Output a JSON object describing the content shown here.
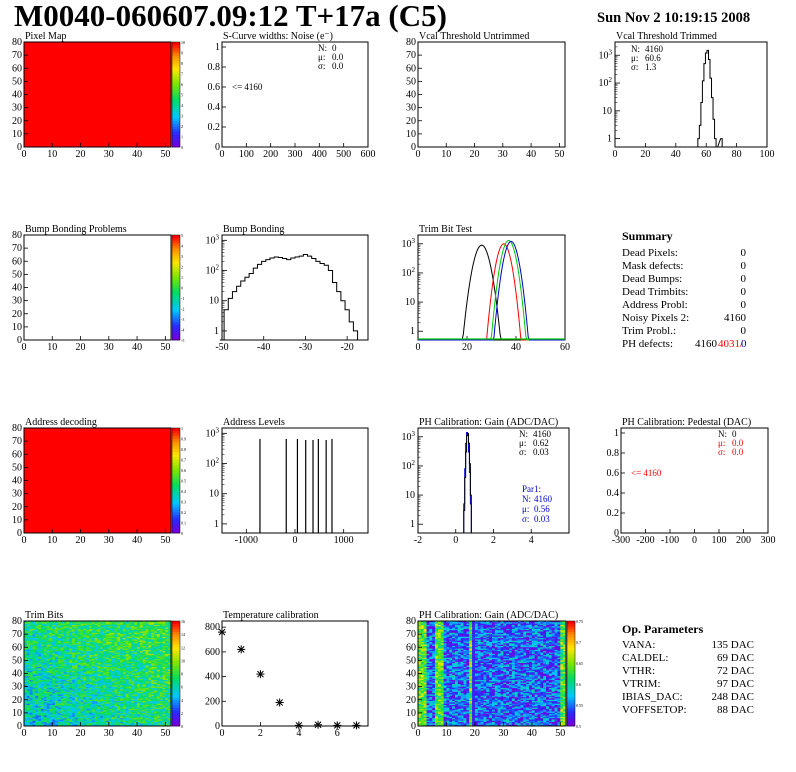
{
  "header": {
    "title": "M0040-060607.09:12 T+17a (C5)",
    "date": "Sun Nov  2 10:19:15 2008"
  },
  "colors": {
    "red": "#ff0000",
    "green": "#00cc00",
    "blue": "#0000cc",
    "frame": "#000000"
  },
  "summary": {
    "title": "Summary",
    "rows": [
      {
        "label": "Dead Pixels:",
        "value": "0"
      },
      {
        "label": "Mask defects:",
        "value": "0"
      },
      {
        "label": "Dead Bumps:",
        "value": "0"
      },
      {
        "label": "Dead Trimbits:",
        "value": "0"
      },
      {
        "label": "Address Probl:",
        "value": "0"
      },
      {
        "label": "Noisy Pixels 2:",
        "value": "4160"
      },
      {
        "label": "Trim Probl.:",
        "value": "0"
      }
    ],
    "ph": {
      "label": "PH defects:",
      "v1": "4160",
      "v2": "4031/",
      "v3": "0"
    }
  },
  "params": {
    "title": "Op. Parameters",
    "rows": [
      {
        "label": "VANA:",
        "value": "135 DAC"
      },
      {
        "label": "CALDEL:",
        "value": "69 DAC"
      },
      {
        "label": "VTHR:",
        "value": "72 DAC"
      },
      {
        "label": "VTRIM:",
        "value": "97 DAC"
      },
      {
        "label": "IBIAS_DAC:",
        "value": "248 DAC"
      },
      {
        "label": "VOFFSETOP:",
        "value": "88 DAC"
      }
    ]
  },
  "chart_data": [
    {
      "id": "pixel-map",
      "type": "heatmap",
      "title": "Pixel Map",
      "fill": "uniform-red",
      "xlim": [
        0,
        52
      ],
      "ylim": [
        0,
        80
      ],
      "xticks": [
        "0",
        "10",
        "20",
        "30",
        "40",
        "50"
      ],
      "yticks": [
        "0",
        "10",
        "20",
        "30",
        "40",
        "50",
        "60",
        "70",
        "80"
      ],
      "zticks": [
        "0",
        "1",
        "2",
        "3",
        "4",
        "5",
        "6",
        "7",
        "8",
        "9",
        "10"
      ]
    },
    {
      "id": "scurve",
      "type": "bar",
      "title": "S-Curve widths: Noise (e⁻)",
      "xlim": [
        0,
        600
      ],
      "ylim": [
        0,
        1.05
      ],
      "xticks": [
        "0",
        "100",
        "200",
        "300",
        "400",
        "500",
        "600"
      ],
      "yticks": [
        "0",
        "0.2",
        "0.4",
        "0.6",
        "0.8",
        "1"
      ],
      "stats": {
        "n": "0",
        "mu": "0.0",
        "sigma": "0.0"
      },
      "overflow": "<= 4160"
    },
    {
      "id": "vcal-untrimmed",
      "type": "heatmap",
      "title": "Vcal Threshold Untrimmed",
      "fill": "empty",
      "xlim": [
        0,
        52
      ],
      "ylim": [
        0,
        80
      ],
      "xticks": [
        "0",
        "10",
        "20",
        "30",
        "40",
        "50"
      ],
      "yticks": [
        "0",
        "10",
        "20",
        "30",
        "40",
        "50",
        "60",
        "70",
        "80"
      ]
    },
    {
      "id": "vcal-trimmed",
      "type": "bar",
      "title": "Vcal Threshold Trimmed",
      "log": true,
      "xlim": [
        0,
        100
      ],
      "ylim": [
        0.5,
        3000
      ],
      "xticks": [
        "0",
        "20",
        "40",
        "60",
        "80",
        "100"
      ],
      "stats": {
        "n": "4160",
        "mu": "60.6",
        "sigma": "1.3"
      },
      "x": [
        55,
        56,
        57,
        58,
        59,
        60,
        61,
        62,
        63,
        64,
        65,
        66,
        67,
        70,
        71
      ],
      "values": [
        1,
        3,
        20,
        120,
        500,
        1200,
        1500,
        700,
        150,
        30,
        5,
        1,
        0,
        1,
        0
      ]
    },
    {
      "id": "bump-problems",
      "type": "heatmap",
      "title": "Bump Bonding Problems",
      "fill": "empty",
      "xlim": [
        0,
        52
      ],
      "ylim": [
        0,
        80
      ],
      "xticks": [
        "0",
        "10",
        "20",
        "30",
        "40",
        "50"
      ],
      "yticks": [
        "0",
        "10",
        "20",
        "30",
        "40",
        "50",
        "60",
        "70",
        "80"
      ],
      "zticks": [
        "-5",
        "-4",
        "-3",
        "-2",
        "-1",
        "0",
        "1",
        "2",
        "3",
        "4",
        "5"
      ]
    },
    {
      "id": "bump-bonding",
      "type": "bar",
      "title": "Bump Bonding",
      "log": true,
      "xlim": [
        -50,
        -15
      ],
      "ylim": [
        0.5,
        1500
      ],
      "xticks": [
        "-50",
        "-40",
        "-30",
        "-20"
      ],
      "x": [
        -50,
        -49,
        -48,
        -47,
        -46,
        -45,
        -44,
        -43,
        -42,
        -41,
        -40,
        -39,
        -38,
        -37,
        -36,
        -35,
        -34,
        -33,
        -32,
        -31,
        -30,
        -29,
        -28,
        -27,
        -26,
        -25,
        -24,
        -23,
        -22,
        -21,
        -20,
        -19,
        -18,
        -17
      ],
      "values": [
        0,
        5,
        12,
        20,
        30,
        45,
        60,
        80,
        120,
        160,
        200,
        230,
        260,
        280,
        270,
        250,
        230,
        260,
        280,
        300,
        340,
        300,
        250,
        200,
        170,
        150,
        100,
        40,
        20,
        10,
        5,
        2,
        1,
        0
      ]
    },
    {
      "id": "trim-bit-test",
      "type": "line",
      "title": "Trim Bit Test",
      "log": true,
      "xlim": [
        0,
        60
      ],
      "ylim": [
        0.5,
        2000
      ],
      "xticks": [
        "0",
        "20",
        "40",
        "60"
      ],
      "series": [
        {
          "color": "#000000",
          "peak": 26,
          "width": 2.0,
          "height": 900
        },
        {
          "color": "#ff0000",
          "peak": 35,
          "width": 1.8,
          "height": 1000
        },
        {
          "color": "#00cc00",
          "peak": 37,
          "width": 1.8,
          "height": 1300
        },
        {
          "color": "#0000cc",
          "peak": 38,
          "width": 1.8,
          "height": 1200
        }
      ]
    },
    {
      "id": "address-decoding",
      "type": "heatmap",
      "title": "Address decoding",
      "fill": "uniform-red",
      "xlim": [
        0,
        52
      ],
      "ylim": [
        0,
        80
      ],
      "xticks": [
        "0",
        "10",
        "20",
        "30",
        "40",
        "50"
      ],
      "yticks": [
        "0",
        "10",
        "20",
        "30",
        "40",
        "50",
        "60",
        "70",
        "80"
      ],
      "zticks": [
        "0",
        "0.1",
        "0.2",
        "0.3",
        "0.4",
        "0.5",
        "0.6",
        "0.7",
        "0.8",
        "0.9",
        "1"
      ]
    },
    {
      "id": "address-levels",
      "type": "bar",
      "title": "Address Levels",
      "log": true,
      "xlim": [
        -1500,
        1500
      ],
      "ylim": [
        0.5,
        1500
      ],
      "xticks": [
        "-1000",
        "0",
        "1000"
      ],
      "x": [
        -720,
        -180,
        50,
        220,
        370,
        480,
        640,
        760
      ],
      "values": [
        650,
        650,
        650,
        600,
        600,
        650,
        600,
        650
      ]
    },
    {
      "id": "ph-gain",
      "type": "bar",
      "title": "PH Calibration: Gain (ADC/DAC)",
      "log": true,
      "xlim": [
        -2,
        6
      ],
      "ylim": [
        0.5,
        2000
      ],
      "xticks": [
        "-2",
        "0",
        "2",
        "4"
      ],
      "stats": {
        "n": "4160",
        "mu": "0.62",
        "sigma": "0.03"
      },
      "par1": {
        "label": "Par1:",
        "n": "4160",
        "mu": "0.56",
        "sigma": "0.03"
      },
      "x": [
        0.45,
        0.5,
        0.55,
        0.6,
        0.65,
        0.7,
        0.75,
        0.8
      ],
      "values": [
        3,
        40,
        300,
        1100,
        1300,
        600,
        120,
        10
      ],
      "values2": [
        5,
        80,
        600,
        1400,
        1200,
        300,
        60,
        5
      ]
    },
    {
      "id": "ph-pedestal",
      "type": "bar",
      "title": "PH Calibration: Pedestal (DAC)",
      "xlim": [
        -300,
        300
      ],
      "ylim": [
        0,
        1.05
      ],
      "xticks": [
        "-300",
        "-200",
        "-100",
        "0",
        "100",
        "200",
        "300"
      ],
      "yticks": [
        "0",
        "0.2",
        "0.4",
        "0.6",
        "0.8",
        "1"
      ],
      "stats": {
        "n": "0",
        "mu": "0.0",
        "sigma": "0.0"
      },
      "overflow": "<= 4160"
    },
    {
      "id": "trim-bits",
      "type": "heatmap",
      "title": "Trim Bits",
      "fill": "noise-trim",
      "xlim": [
        0,
        52
      ],
      "ylim": [
        0,
        80
      ],
      "xticks": [
        "0",
        "10",
        "20",
        "30",
        "40",
        "50"
      ],
      "yticks": [
        "0",
        "10",
        "20",
        "30",
        "40",
        "50",
        "60",
        "70",
        "80"
      ],
      "zticks": [
        "0",
        "2",
        "4",
        "6",
        "8",
        "10",
        "12",
        "14",
        "16"
      ]
    },
    {
      "id": "temperature",
      "type": "scatter",
      "title": "Temperature calibration",
      "xlim": [
        0,
        7.6
      ],
      "ylim": [
        0,
        850
      ],
      "xticks": [
        "0",
        "2",
        "4",
        "6"
      ],
      "yticks": [
        "0",
        "200",
        "400",
        "600",
        "800"
      ],
      "x": [
        0,
        1,
        2,
        3,
        4,
        5,
        6,
        7
      ],
      "values": [
        760,
        620,
        420,
        190,
        5,
        10,
        5,
        5
      ]
    },
    {
      "id": "ph-gain-map",
      "type": "heatmap",
      "title": "PH Calibration: Gain (ADC/DAC)",
      "fill": "noise-gain",
      "xlim": [
        0,
        52
      ],
      "ylim": [
        0,
        80
      ],
      "xticks": [
        "0",
        "10",
        "20",
        "30",
        "40",
        "50"
      ],
      "yticks": [
        "0",
        "10",
        "20",
        "30",
        "40",
        "50",
        "60",
        "70",
        "80"
      ],
      "zticks": [
        "0.5",
        "0.55",
        "0.6",
        "0.65",
        "0.7",
        "0.75"
      ]
    }
  ]
}
